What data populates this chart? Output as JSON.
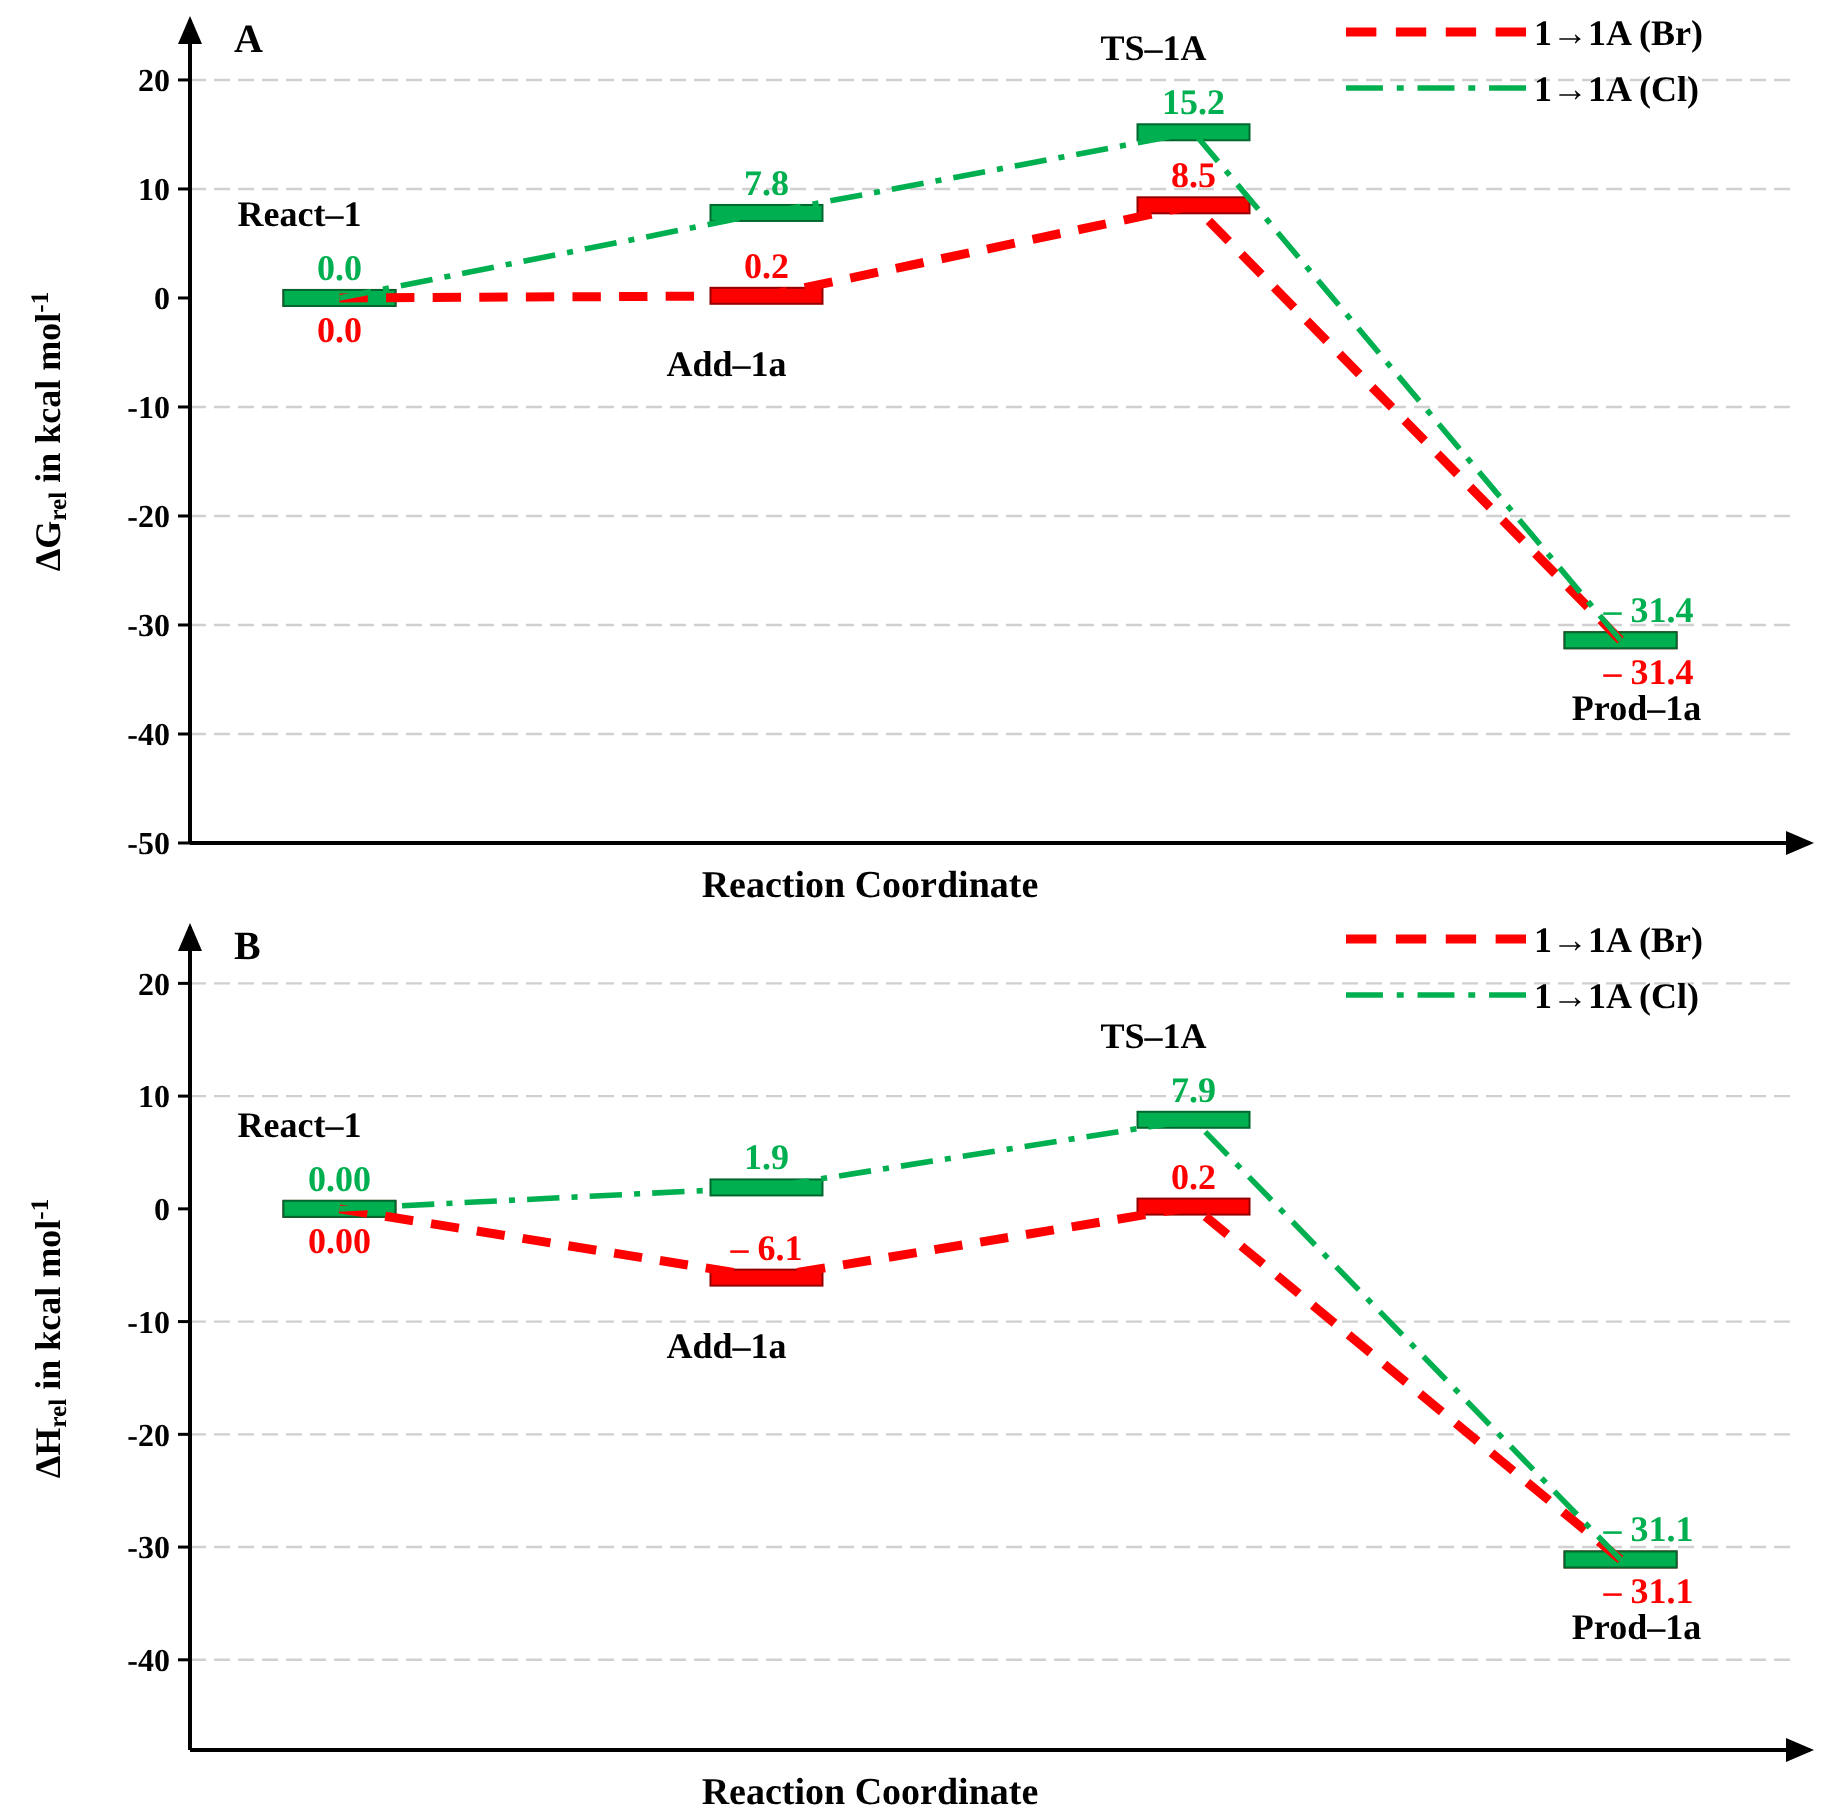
{
  "chart_data": [
    {
      "type": "line",
      "title": "A",
      "xlabel": "Reaction Coordinate",
      "ylabel": "ΔG$_{rel}$ in kcal mol$^{-1}$",
      "categories": [
        null,
        null,
        null,
        null
      ],
      "ylim": [
        -50,
        25.5
      ],
      "yticks": [
        -50,
        -40,
        -30,
        -20,
        -10,
        0,
        10,
        20
      ],
      "grid": "y",
      "legend": "top right",
      "annotations": [
        "React–1",
        "Add–1a",
        "TS–1A",
        "Prod–1a"
      ],
      "series": [
        {
          "name": "1→1A (Br)",
          "color": "#ff0000",
          "line_style": "dashed",
          "values": [
            0,
            0.2,
            8.5,
            -31.4
          ],
          "value_labels": [
            "0.0",
            "0.2",
            "8.5",
            "– 31.4"
          ]
        },
        {
          "name": "1→1A (Cl)",
          "color": "#00b050",
          "line_style": "dashdot",
          "values": [
            0,
            7.8,
            15.2,
            -31.4
          ],
          "value_labels": [
            "0.0",
            "7.8",
            "15.2",
            "– 31.4"
          ]
        }
      ]
    },
    {
      "type": "line",
      "title": "B",
      "xlabel": "Reaction Coordinate",
      "ylabel": "ΔH$_{rel}$ in kcal mol$^{-1}$",
      "categories": [
        null,
        null,
        null,
        null
      ],
      "ylim": [
        -48,
        25
      ],
      "yticks": [
        -40,
        -30,
        -20,
        -10,
        0,
        10,
        20
      ],
      "grid": "y",
      "legend": "top right",
      "annotations": [
        "React–1",
        "Add–1a",
        "TS–1A",
        "Prod–1a"
      ],
      "series": [
        {
          "name": "1→1A (Br)",
          "color": "#ff0000",
          "line_style": "dashed",
          "values": [
            0,
            -6.1,
            0.2,
            -31.1
          ],
          "value_labels": [
            "0.00",
            "– 6.1",
            "0.2",
            "– 31.1"
          ]
        },
        {
          "name": "1→1A (Cl)",
          "color": "#00b050",
          "line_style": "dashdot",
          "values": [
            0,
            1.9,
            7.9,
            -31.1
          ],
          "value_labels": [
            "0.00",
            "1.9",
            "7.9",
            "– 31.1"
          ]
        }
      ]
    }
  ]
}
